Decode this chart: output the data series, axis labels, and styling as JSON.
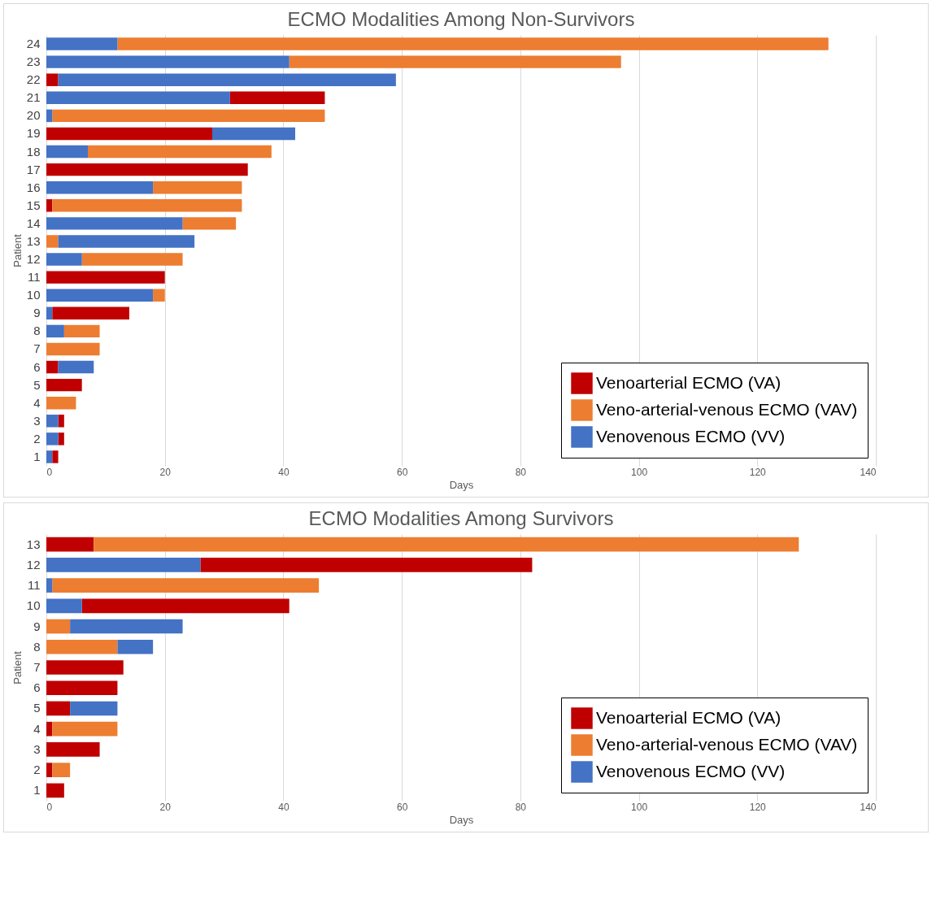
{
  "chart_data": [
    {
      "type": "bar",
      "title": "ECMO Modalities Among Non-Survivors",
      "xlabel": "Days",
      "ylabel": "Patient",
      "orientation": "horizontal",
      "categories": [
        "24",
        "23",
        "22",
        "21",
        "20",
        "19",
        "18",
        "17",
        "16",
        "15",
        "14",
        "13",
        "12",
        "11",
        "10",
        "9",
        "8",
        "7",
        "6",
        "5",
        "4",
        "3",
        "2",
        "1"
      ],
      "series": [
        {
          "name": "Venoarterial ECMO (VA)",
          "color": "#c00000",
          "values": [
            null,
            null,
            2,
            16,
            null,
            28,
            null,
            34,
            null,
            1,
            null,
            null,
            null,
            20,
            null,
            13,
            null,
            null,
            2,
            6,
            null,
            1,
            1,
            1
          ],
          "base": [
            null,
            null,
            0,
            31,
            null,
            0,
            null,
            0,
            null,
            0,
            null,
            null,
            null,
            0,
            null,
            1,
            null,
            null,
            0,
            0,
            null,
            2,
            2,
            1
          ]
        },
        {
          "name": "Veno-arterial-venous ECMO (VAV)",
          "color": "#ed7d31",
          "values": [
            120,
            56,
            null,
            null,
            46,
            null,
            31,
            null,
            15,
            32,
            9,
            2,
            17,
            null,
            2,
            null,
            6,
            9,
            null,
            null,
            5,
            null,
            null,
            null
          ],
          "base": [
            12,
            41,
            null,
            null,
            1,
            null,
            7,
            null,
            18,
            1,
            23,
            0,
            6,
            null,
            18,
            null,
            3,
            0,
            null,
            null,
            0,
            null,
            null,
            null
          ]
        },
        {
          "name": "Venovenous ECMO (VV)",
          "color": "#4472c4",
          "values": [
            12,
            41,
            57,
            31,
            1,
            14,
            7,
            null,
            18,
            null,
            23,
            23,
            6,
            null,
            18,
            1,
            3,
            null,
            6,
            null,
            null,
            2,
            2,
            1
          ],
          "base": [
            0,
            0,
            2,
            0,
            0,
            28,
            0,
            null,
            0,
            null,
            0,
            2,
            0,
            null,
            0,
            0,
            0,
            null,
            2,
            null,
            null,
            0,
            0,
            0
          ]
        }
      ],
      "xlim": [
        0,
        140
      ],
      "xticks": [
        0,
        20,
        40,
        60,
        80,
        100,
        120,
        140
      ],
      "grid": "x",
      "legend": "bottom right"
    },
    {
      "type": "bar",
      "title": "ECMO Modalities Among Survivors",
      "xlabel": "Days",
      "ylabel": "Patient",
      "orientation": "horizontal",
      "categories": [
        "13",
        "12",
        "11",
        "10",
        "9",
        "8",
        "7",
        "6",
        "5",
        "4",
        "3",
        "2",
        "1"
      ],
      "series": [
        {
          "name": "Venoarterial ECMO (VA)",
          "color": "#c00000",
          "values": [
            8,
            56,
            null,
            35,
            null,
            null,
            13,
            12,
            4,
            1,
            9,
            1,
            3
          ],
          "base": [
            0,
            26,
            null,
            6,
            null,
            null,
            0,
            0,
            0,
            0,
            0,
            0,
            0
          ]
        },
        {
          "name": "Veno-arterial-venous ECMO (VAV)",
          "color": "#ed7d31",
          "values": [
            119,
            null,
            45,
            null,
            4,
            12,
            null,
            null,
            null,
            11,
            null,
            3,
            null
          ],
          "base": [
            8,
            null,
            1,
            null,
            0,
            0,
            null,
            null,
            null,
            1,
            null,
            1,
            null
          ]
        },
        {
          "name": "Venovenous ECMO (VV)",
          "color": "#4472c4",
          "values": [
            null,
            26,
            1,
            6,
            19,
            6,
            null,
            null,
            8,
            null,
            null,
            null,
            null
          ],
          "base": [
            null,
            0,
            0,
            0,
            4,
            12,
            null,
            null,
            4,
            null,
            null,
            null,
            null
          ]
        }
      ],
      "xlim": [
        0,
        140
      ],
      "xticks": [
        0,
        20,
        40,
        60,
        80,
        100,
        120,
        140
      ],
      "grid": "x",
      "legend": "bottom right"
    }
  ]
}
